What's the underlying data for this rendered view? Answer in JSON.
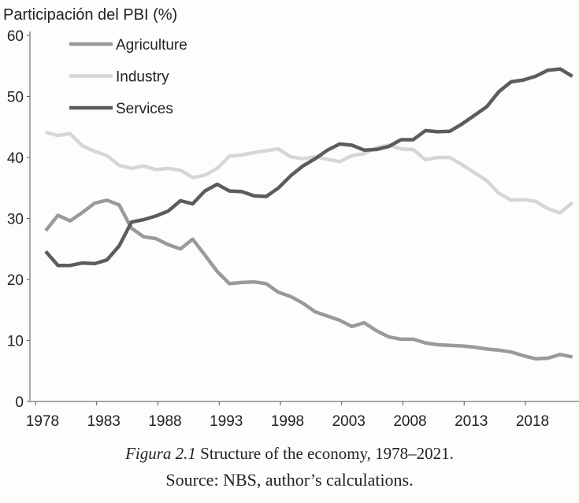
{
  "chart_data": {
    "type": "line",
    "title": "",
    "ylabel": "Participación del PBI (%)",
    "xlabel": "",
    "ylim": [
      0,
      60
    ],
    "yticks": [
      0,
      10,
      20,
      30,
      40,
      50,
      60
    ],
    "xlim": [
      1978,
      2021
    ],
    "xticks": [
      1978,
      1983,
      1988,
      1993,
      1998,
      2003,
      2008,
      2013,
      2018
    ],
    "grid": false,
    "legend": "top-left",
    "x": [
      1978,
      1979,
      1980,
      1981,
      1982,
      1983,
      1984,
      1985,
      1986,
      1987,
      1988,
      1989,
      1990,
      1991,
      1992,
      1993,
      1994,
      1995,
      1996,
      1997,
      1998,
      1999,
      2000,
      2001,
      2002,
      2003,
      2004,
      2005,
      2006,
      2007,
      2008,
      2009,
      2010,
      2011,
      2012,
      2013,
      2014,
      2015,
      2016,
      2017,
      2018,
      2019,
      2020,
      2021
    ],
    "series": [
      {
        "name": "Agriculture",
        "color": "#9a9a9a",
        "values": [
          28.0,
          30.5,
          29.6,
          31.0,
          32.5,
          33.0,
          32.2,
          28.4,
          27.0,
          26.7,
          25.7,
          25.0,
          26.6,
          24.0,
          21.3,
          19.3,
          19.5,
          19.6,
          19.3,
          17.9,
          17.2,
          16.1,
          14.7,
          14.0,
          13.3,
          12.3,
          12.9,
          11.6,
          10.6,
          10.2,
          10.2,
          9.6,
          9.3,
          9.2,
          9.1,
          8.9,
          8.6,
          8.4,
          8.1,
          7.5,
          7.0,
          7.1,
          7.7,
          7.3
        ]
      },
      {
        "name": "Industry",
        "color": "#d6d6d6",
        "values": [
          44.1,
          43.6,
          43.9,
          41.9,
          41.0,
          40.3,
          38.7,
          38.2,
          38.6,
          38.0,
          38.2,
          37.9,
          36.7,
          37.1,
          38.2,
          40.2,
          40.4,
          40.8,
          41.1,
          41.4,
          40.1,
          39.8,
          40.1,
          39.7,
          39.3,
          40.3,
          40.6,
          41.6,
          42.0,
          41.4,
          41.3,
          39.6,
          40.0,
          40.0,
          38.8,
          37.5,
          36.2,
          34.1,
          33.0,
          33.1,
          32.8,
          31.6,
          30.9,
          32.6
        ]
      },
      {
        "name": "Services",
        "color": "#5c5c5c",
        "values": [
          24.6,
          22.3,
          22.3,
          22.7,
          22.6,
          23.2,
          25.5,
          29.4,
          29.8,
          30.4,
          31.2,
          32.9,
          32.4,
          34.5,
          35.6,
          34.5,
          34.4,
          33.7,
          33.6,
          35.0,
          37.0,
          38.6,
          39.8,
          41.2,
          42.2,
          42.0,
          41.2,
          41.3,
          41.8,
          42.9,
          42.9,
          44.4,
          44.2,
          44.3,
          45.5,
          46.9,
          48.3,
          50.8,
          52.4,
          52.7,
          53.3,
          54.3,
          54.5,
          53.3
        ]
      }
    ]
  },
  "caption": {
    "figure_label": "Figura 2.1",
    "figure_text": "Structure of the economy, 1978–2021.",
    "source": "Source: NBS, author’s calculations."
  }
}
